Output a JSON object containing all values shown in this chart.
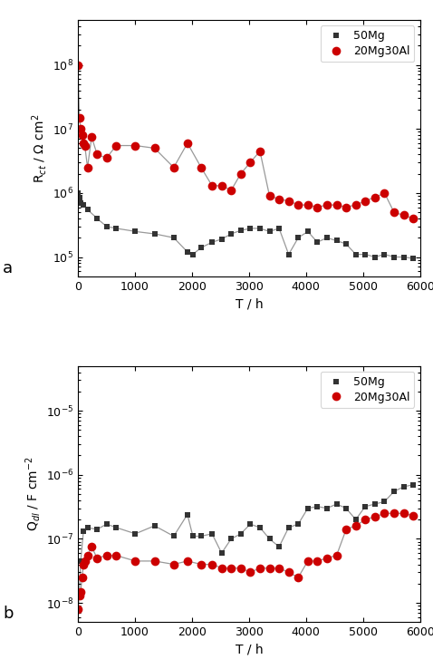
{
  "rct_50mg_x": [
    0,
    24,
    48,
    96,
    168,
    336,
    500,
    672,
    1008,
    1344,
    1680,
    1920,
    2016,
    2160,
    2352,
    2520,
    2688,
    2856,
    3024,
    3192,
    3360,
    3528,
    3696,
    3864,
    4032,
    4200,
    4368,
    4536,
    4704,
    4872,
    5040,
    5208,
    5376,
    5544,
    5712,
    5880
  ],
  "rct_50mg_y": [
    1000000.0,
    850000.0,
    700000.0,
    650000.0,
    550000.0,
    400000.0,
    300000.0,
    280000.0,
    250000.0,
    230000.0,
    200000.0,
    120000.0,
    110000.0,
    140000.0,
    170000.0,
    190000.0,
    230000.0,
    260000.0,
    280000.0,
    280000.0,
    250000.0,
    280000.0,
    110000.0,
    200000.0,
    250000.0,
    170000.0,
    200000.0,
    180000.0,
    160000.0,
    110000.0,
    110000.0,
    100000.0,
    110000.0,
    100000.0,
    100000.0,
    95000.0
  ],
  "rct_20mg30al_x": [
    0,
    24,
    48,
    72,
    96,
    120,
    168,
    240,
    336,
    500,
    672,
    1008,
    1344,
    1680,
    1920,
    2160,
    2352,
    2520,
    2688,
    2856,
    3024,
    3192,
    3360,
    3528,
    3696,
    3864,
    4032,
    4200,
    4368,
    4536,
    4704,
    4872,
    5040,
    5208,
    5376,
    5544,
    5712,
    5880
  ],
  "rct_20mg30al_y": [
    100000000.0,
    15000000.0,
    10000000.0,
    8000000.0,
    6000000.0,
    5500000.0,
    2500000.0,
    7500000.0,
    4000000.0,
    3500000.0,
    5500000.0,
    5500000.0,
    5000000.0,
    2500000.0,
    6000000.0,
    2500000.0,
    1300000.0,
    1300000.0,
    1100000.0,
    2000000.0,
    3000000.0,
    4500000.0,
    900000.0,
    800000.0,
    750000.0,
    650000.0,
    650000.0,
    600000.0,
    650000.0,
    650000.0,
    600000.0,
    650000.0,
    750000.0,
    850000.0,
    1000000.0,
    500000.0,
    450000.0,
    400000.0
  ],
  "qdl_50mg_x": [
    0,
    24,
    48,
    96,
    168,
    336,
    500,
    672,
    1008,
    1344,
    1680,
    1920,
    2016,
    2160,
    2352,
    2520,
    2688,
    2856,
    3024,
    3192,
    3360,
    3528,
    3696,
    3864,
    4032,
    4200,
    4368,
    4536,
    4704,
    4872,
    5040,
    5208,
    5376,
    5544,
    5712,
    5880
  ],
  "qdl_50mg_y": [
    1.2e-08,
    1.4e-08,
    4.5e-08,
    1.3e-07,
    1.5e-07,
    1.4e-07,
    1.7e-07,
    1.5e-07,
    1.2e-07,
    1.6e-07,
    1.1e-07,
    2.4e-07,
    1.1e-07,
    1.1e-07,
    1.2e-07,
    6e-08,
    1e-07,
    1.2e-07,
    1.7e-07,
    1.5e-07,
    1e-07,
    7.5e-08,
    1.5e-07,
    1.7e-07,
    3e-07,
    3.2e-07,
    3e-07,
    3.5e-07,
    3e-07,
    2e-07,
    3.2e-07,
    3.5e-07,
    3.8e-07,
    5.5e-07,
    6.5e-07,
    7e-07
  ],
  "qdl_20mg30al_x": [
    0,
    24,
    48,
    72,
    96,
    120,
    168,
    240,
    336,
    500,
    672,
    1008,
    1344,
    1680,
    1920,
    2160,
    2352,
    2520,
    2688,
    2856,
    3024,
    3192,
    3360,
    3528,
    3696,
    3864,
    4032,
    4200,
    4368,
    4536,
    4704,
    4872,
    5040,
    5208,
    5376,
    5544,
    5712,
    5880
  ],
  "qdl_20mg30al_y": [
    8e-09,
    1.3e-08,
    1.5e-08,
    2.5e-08,
    4e-08,
    4.5e-08,
    5.5e-08,
    7.5e-08,
    5e-08,
    5.5e-08,
    5.5e-08,
    4.5e-08,
    4.5e-08,
    4e-08,
    4.5e-08,
    4e-08,
    4e-08,
    3.5e-08,
    3.5e-08,
    3.5e-08,
    3e-08,
    3.5e-08,
    3.5e-08,
    3.5e-08,
    3e-08,
    2.5e-08,
    4.5e-08,
    4.5e-08,
    5e-08,
    5.5e-08,
    1.4e-07,
    1.6e-07,
    2e-07,
    2.2e-07,
    2.5e-07,
    2.5e-07,
    2.5e-07,
    2.3e-07
  ],
  "line_color": "#999999",
  "marker_50mg_color": "#333333",
  "marker_20mg30al_color": "#cc0000",
  "background_color": "white",
  "xlim": [
    0,
    6000
  ],
  "rct_ylim": [
    50000.0,
    500000000.0
  ],
  "qdl_ylim": [
    5e-09,
    5e-05
  ],
  "xlabel": "T / h",
  "rct_ylabel": "R$_{ct}$ / Ω cm$^{2}$",
  "qdl_ylabel": "Q$_{dl}$ / F cm$^{-2}$",
  "label_50mg": "50Mg",
  "label_20mg30al": "20Mg30Al",
  "panel_a_label": "a",
  "panel_b_label": "b"
}
